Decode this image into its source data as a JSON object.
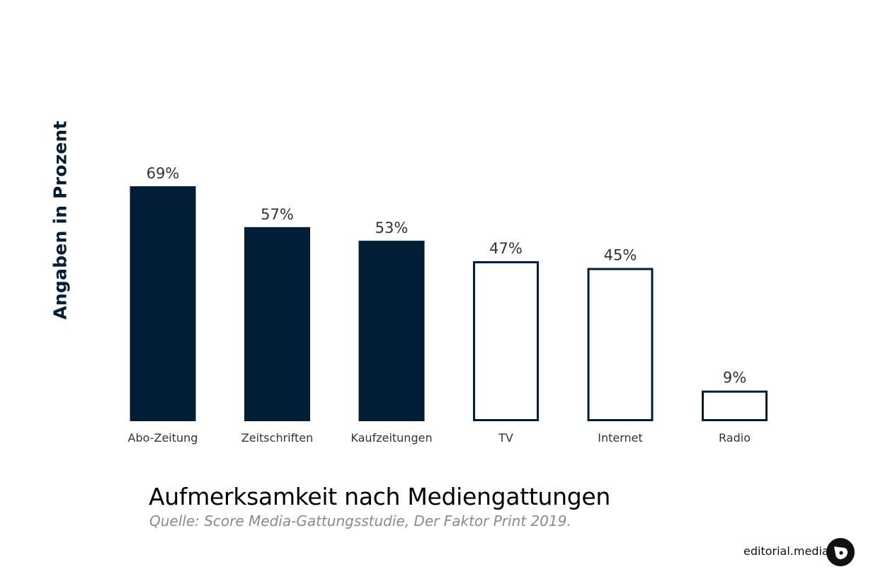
{
  "chart_data": {
    "type": "bar",
    "categories": [
      "Abo-Zeitung",
      "Zeitschriften",
      "Kaufzeitungen",
      "TV",
      "Internet",
      "Radio"
    ],
    "values": [
      69,
      57,
      53,
      47,
      45,
      9
    ],
    "data_labels": [
      "69%",
      "57%",
      "53%",
      "47%",
      "45%",
      "9%"
    ],
    "bar_styles": [
      "filled",
      "filled",
      "filled",
      "outline",
      "outline",
      "outline"
    ],
    "title": "Aufmerksamkeit nach Mediengattungen",
    "subtitle": "Quelle: Score Media-Gattungsstudie, Der Faktor Print 2019.",
    "xlabel": "",
    "ylabel": "Angaben in Prozent",
    "ylim": [
      0,
      100
    ],
    "grid": false,
    "legend": "none",
    "colors": {
      "fill": "#021d36",
      "outline": "#021d36",
      "label": "#333333"
    }
  },
  "brand": {
    "name": "editorial.media",
    "icon": "editorial-media-logo-icon"
  }
}
